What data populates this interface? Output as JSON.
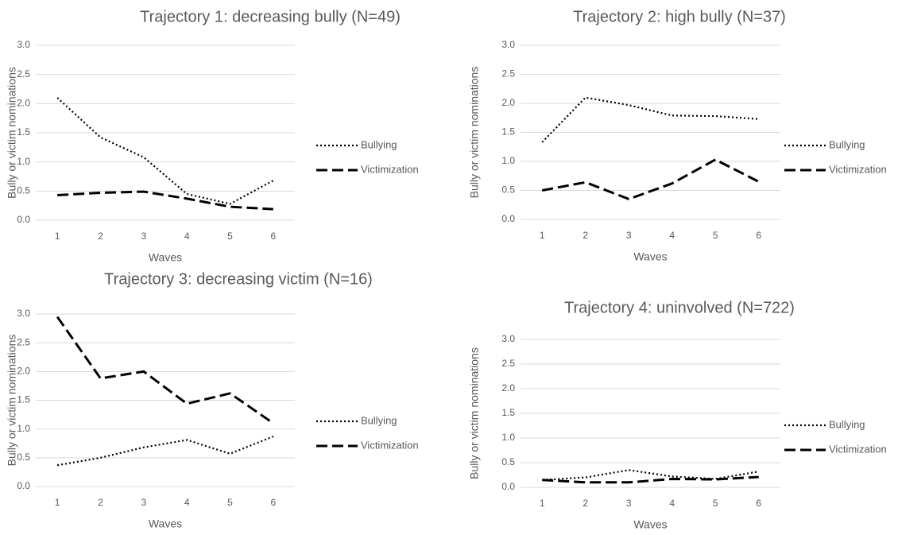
{
  "chart_data": [
    {
      "type": "line",
      "title": "Trajectory 1: decreasing bully (N=49)",
      "x_label": "Waves",
      "y_label": "Bully or victim nominations",
      "categories": [
        "1",
        "2",
        "3",
        "4",
        "5",
        "6"
      ],
      "series": [
        {
          "name": "Bullying",
          "color": "#000000",
          "line_style": "dotted",
          "values": [
            2.1,
            1.42,
            1.08,
            0.45,
            0.28,
            0.68
          ]
        },
        {
          "name": "Victimization",
          "color": "#000000",
          "line_style": "dashed",
          "values": [
            0.43,
            0.47,
            0.49,
            0.37,
            0.23,
            0.19
          ]
        }
      ],
      "ylim": [
        0,
        3
      ],
      "yticks": [
        {
          "value": 0,
          "label": "0.0"
        },
        {
          "value": 0.5,
          "label": "0.5"
        },
        {
          "value": 1,
          "label": "1.0"
        },
        {
          "value": 1.5,
          "label": "1.5"
        },
        {
          "value": 2,
          "label": "2.0"
        },
        {
          "value": 2.5,
          "label": "2.5"
        },
        {
          "value": 3,
          "label": "3.0"
        }
      ],
      "grid": true,
      "legend": "right"
    },
    {
      "type": "line",
      "title": "Trajectory 2: high bully (N=37)",
      "x_label": "Waves",
      "y_label": "Bully or victim nominations",
      "categories": [
        "1",
        "2",
        "3",
        "4",
        "5",
        "6"
      ],
      "series": [
        {
          "name": "Bullying",
          "color": "#000000",
          "line_style": "dotted",
          "values": [
            1.33,
            2.1,
            1.97,
            1.79,
            1.78,
            1.73
          ]
        },
        {
          "name": "Victimization",
          "color": "#000000",
          "line_style": "dashed",
          "values": [
            0.5,
            0.64,
            0.35,
            0.62,
            1.03,
            0.65
          ]
        }
      ],
      "ylim": [
        0,
        3
      ],
      "yticks": [
        {
          "value": 0,
          "label": "0.0"
        },
        {
          "value": 0.5,
          "label": "0.5"
        },
        {
          "value": 1,
          "label": "1.0"
        },
        {
          "value": 1.5,
          "label": "1.5"
        },
        {
          "value": 2,
          "label": "2.0"
        },
        {
          "value": 2.5,
          "label": "2.5"
        },
        {
          "value": 3,
          "label": "3.0"
        }
      ],
      "grid": true,
      "legend": "right"
    },
    {
      "type": "line",
      "title": "Trajectory 3: decreasing victim (N=16)",
      "x_label": "Waves",
      "y_label": "Bully or victim nominations",
      "categories": [
        "1",
        "2",
        "3",
        "4",
        "5",
        "6"
      ],
      "series": [
        {
          "name": "Bullying",
          "color": "#000000",
          "line_style": "dotted",
          "values": [
            0.37,
            0.5,
            0.68,
            0.81,
            0.57,
            0.87
          ]
        },
        {
          "name": "Victimization",
          "color": "#000000",
          "line_style": "dashed",
          "values": [
            2.95,
            1.88,
            2.0,
            1.44,
            1.62,
            1.1
          ]
        }
      ],
      "ylim": [
        0,
        3
      ],
      "yticks": [
        {
          "value": 0,
          "label": "0.0"
        },
        {
          "value": 0.5,
          "label": "0.5"
        },
        {
          "value": 1,
          "label": "1.0"
        },
        {
          "value": 1.5,
          "label": "1.5"
        },
        {
          "value": 2,
          "label": "2.0"
        },
        {
          "value": 2.5,
          "label": "2.5"
        },
        {
          "value": 3,
          "label": "3.0"
        }
      ],
      "grid": true,
      "legend": "right"
    },
    {
      "type": "line",
      "title": "Trajectory 4: uninvolved (N=722)",
      "x_label": "Waves",
      "y_label": "Bully or victim nominations",
      "categories": [
        "1",
        "2",
        "3",
        "4",
        "5",
        "6"
      ],
      "series": [
        {
          "name": "Bullying",
          "color": "#000000",
          "line_style": "dotted",
          "values": [
            0.15,
            0.2,
            0.35,
            0.22,
            0.17,
            0.32
          ]
        },
        {
          "name": "Victimization",
          "color": "#000000",
          "line_style": "dashed",
          "values": [
            0.15,
            0.1,
            0.1,
            0.17,
            0.16,
            0.21
          ]
        }
      ],
      "ylim": [
        0,
        3
      ],
      "yticks": [
        {
          "value": 0,
          "label": "0.0"
        },
        {
          "value": 0.5,
          "label": "0.5"
        },
        {
          "value": 1,
          "label": "1.0"
        },
        {
          "value": 1.5,
          "label": "1.5"
        },
        {
          "value": 2,
          "label": "2.0"
        },
        {
          "value": 2.5,
          "label": "2.5"
        },
        {
          "value": 3,
          "label": "3.0"
        }
      ],
      "grid": true,
      "legend": "right"
    }
  ]
}
